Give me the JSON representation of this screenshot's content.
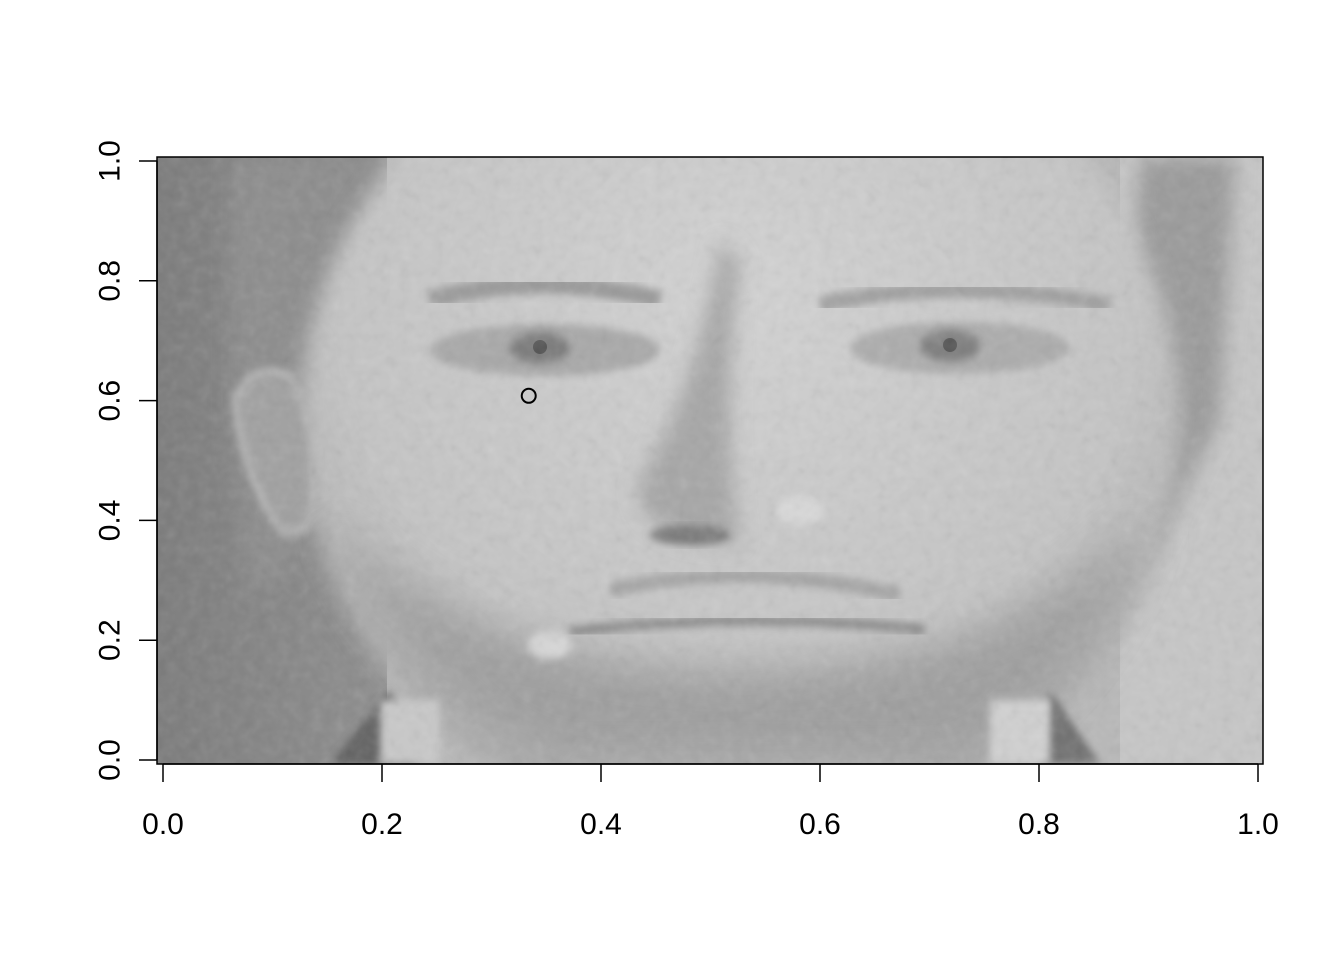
{
  "chart_data": {
    "type": "scatter",
    "title": "",
    "xlabel": "",
    "ylabel": "",
    "xlim": [
      0,
      1
    ],
    "ylim": [
      0,
      1
    ],
    "x_ticks": [
      "0.0",
      "0.2",
      "0.4",
      "0.6",
      "0.8",
      "1.0"
    ],
    "y_ticks": [
      "0.0",
      "0.2",
      "0.4",
      "0.6",
      "0.8",
      "1.0"
    ],
    "background_image": "grayscale-face-photo",
    "points": [
      {
        "x": 0.334,
        "y": 0.608
      }
    ],
    "point_marker": "open-circle",
    "grid": false,
    "colors": {
      "axis": "#000000",
      "point": "#000000"
    }
  }
}
